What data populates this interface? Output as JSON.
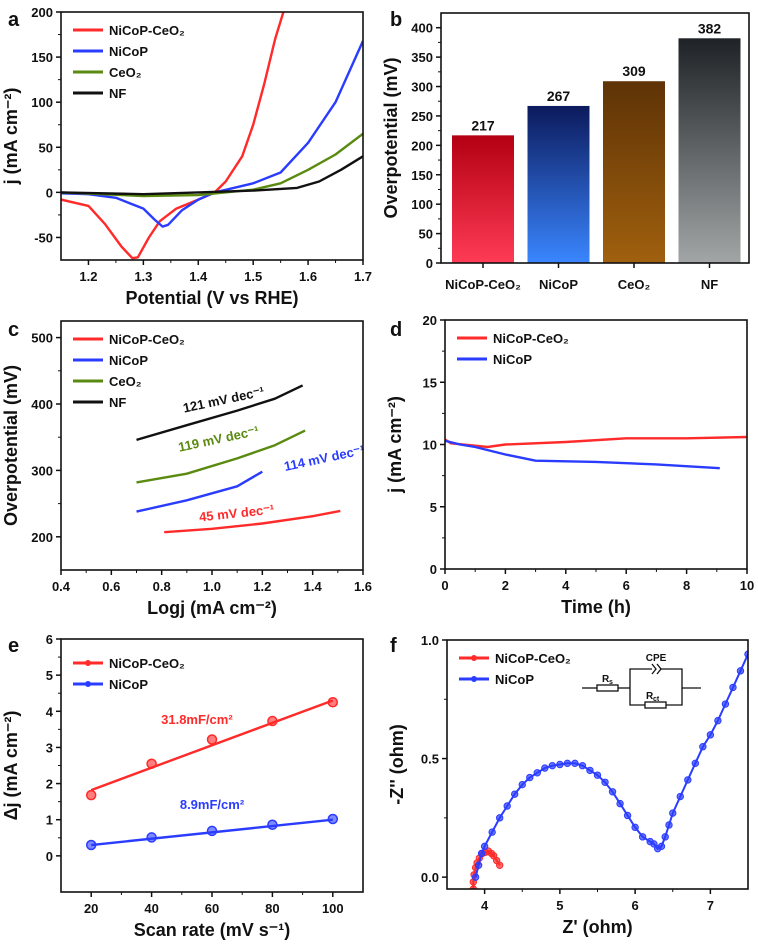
{
  "colors": {
    "red": "#ff2a2a",
    "blue": "#2a3cff",
    "green": "#5a8a10",
    "black": "#111111"
  },
  "chart_data": [
    {
      "id": "a",
      "panel_label": "a",
      "type": "line",
      "xlabel": "Potential (V vs RHE)",
      "ylabel": "j (mA cm⁻²)",
      "xlim": [
        1.15,
        1.7
      ],
      "ylim": [
        -75,
        200
      ],
      "xticks": [
        1.2,
        1.3,
        1.4,
        1.5,
        1.6,
        1.7
      ],
      "xtick_labels": [
        "1.2",
        "1.3",
        "1.4",
        "1.5",
        "1.6",
        "1.7"
      ],
      "yticks": [
        -50,
        0,
        50,
        100,
        150,
        200
      ],
      "ytick_labels": [
        "-50",
        "0",
        "50",
        "100",
        "150",
        "200"
      ],
      "legend": "top-left",
      "series": [
        {
          "name": "NiCoP-CeO₂",
          "color": "#ff2a2a",
          "x": [
            1.15,
            1.2,
            1.23,
            1.26,
            1.28,
            1.29,
            1.31,
            1.33,
            1.36,
            1.4,
            1.43,
            1.45,
            1.48,
            1.5,
            1.52,
            1.54,
            1.555
          ],
          "y": [
            -8,
            -15,
            -35,
            -60,
            -73,
            -72,
            -50,
            -32,
            -18,
            -8,
            0,
            12,
            40,
            75,
            120,
            170,
            200
          ]
        },
        {
          "name": "NiCoP",
          "color": "#2a3cff",
          "x": [
            1.15,
            1.2,
            1.25,
            1.3,
            1.32,
            1.335,
            1.345,
            1.37,
            1.4,
            1.43,
            1.5,
            1.55,
            1.6,
            1.65,
            1.7
          ],
          "y": [
            -1,
            -2,
            -6,
            -18,
            -30,
            -38,
            -36,
            -20,
            -8,
            0,
            10,
            22,
            55,
            100,
            168
          ]
        },
        {
          "name": "CeO₂",
          "color": "#5a8a10",
          "x": [
            1.15,
            1.3,
            1.4,
            1.5,
            1.55,
            1.6,
            1.65,
            1.7
          ],
          "y": [
            0,
            -4,
            -3,
            3,
            10,
            25,
            42,
            65
          ]
        },
        {
          "name": "NF",
          "color": "#111111",
          "x": [
            1.15,
            1.3,
            1.4,
            1.5,
            1.58,
            1.62,
            1.66,
            1.7
          ],
          "y": [
            0,
            -2,
            0,
            2,
            5,
            12,
            25,
            40
          ]
        }
      ]
    },
    {
      "id": "b",
      "panel_label": "b",
      "type": "bar",
      "xlabel": "",
      "ylabel": "Overpotential (mV)",
      "ylim": [
        0,
        425
      ],
      "yticks": [
        0,
        50,
        100,
        150,
        200,
        250,
        300,
        350,
        400
      ],
      "ytick_labels": [
        "0",
        "50",
        "100",
        "150",
        "200",
        "250",
        "300",
        "350",
        "400"
      ],
      "categories": [
        "NiCoP-CeO₂",
        "NiCoP",
        "CeO₂",
        "NF"
      ],
      "values": [
        217,
        267,
        309,
        382
      ],
      "value_labels": [
        "217",
        "267",
        "309",
        "382"
      ],
      "bar_colors": [
        [
          "#b30012",
          "#ff3b55"
        ],
        [
          "#0c1a5c",
          "#3a86ff"
        ],
        [
          "#5e3306",
          "#a0600e"
        ],
        [
          "#1e2226",
          "#a2a6a6"
        ]
      ]
    },
    {
      "id": "c",
      "panel_label": "c",
      "type": "line",
      "xlabel": "Logj (mA cm⁻²)",
      "ylabel": "Overpotential (mV)",
      "xlim": [
        0.4,
        1.6
      ],
      "ylim": [
        150,
        525
      ],
      "xticks": [
        0.4,
        0.6,
        0.8,
        1.0,
        1.2,
        1.4,
        1.6
      ],
      "xtick_labels": [
        "0.4",
        "0.6",
        "0.8",
        "1.0",
        "1.2",
        "1.4",
        "1.6"
      ],
      "yticks": [
        200,
        300,
        400,
        500
      ],
      "ytick_labels": [
        "200",
        "300",
        "400",
        "500"
      ],
      "legend": "top-left",
      "series": [
        {
          "name": "NiCoP-CeO₂",
          "color": "#ff2a2a",
          "x": [
            0.81,
            1.0,
            1.2,
            1.4,
            1.51
          ],
          "y": [
            207,
            212,
            220,
            231,
            239
          ],
          "annotation": "45 mV dec⁻¹",
          "ann_at": [
            1.1,
            229
          ],
          "ann_rot": -6
        },
        {
          "name": "NiCoP",
          "color": "#2a3cff",
          "x": [
            0.7,
            0.9,
            1.1,
            1.2
          ],
          "y": [
            238,
            255,
            276,
            298
          ],
          "annotation": "114 mV dec⁻¹",
          "ann_at": [
            1.45,
            312
          ],
          "ann_rot": -12
        },
        {
          "name": "CeO₂",
          "color": "#5a8a10",
          "x": [
            0.7,
            0.9,
            1.1,
            1.25,
            1.37
          ],
          "y": [
            282,
            295,
            318,
            338,
            360
          ],
          "annotation": "119 mV dec⁻¹",
          "ann_at": [
            1.03,
            341
          ],
          "ann_rot": -12
        },
        {
          "name": "NF",
          "color": "#111111",
          "x": [
            0.7,
            0.9,
            1.1,
            1.25,
            1.36
          ],
          "y": [
            346,
            368,
            390,
            408,
            428
          ],
          "annotation": "121 mV dec⁻¹",
          "ann_at": [
            1.05,
            400
          ],
          "ann_rot": -12
        }
      ]
    },
    {
      "id": "d",
      "panel_label": "d",
      "type": "line",
      "xlabel": "Time (h)",
      "ylabel": "j (mA cm⁻²)",
      "xlim": [
        0,
        10
      ],
      "ylim": [
        0,
        20
      ],
      "xticks": [
        0,
        2,
        4,
        6,
        8,
        10
      ],
      "xtick_labels": [
        "0",
        "2",
        "4",
        "6",
        "8",
        "10"
      ],
      "yticks": [
        0,
        5,
        10,
        15,
        20
      ],
      "ytick_labels": [
        "0",
        "5",
        "10",
        "15",
        "20"
      ],
      "legend": "top-left",
      "series": [
        {
          "name": "NiCoP-CeO₂",
          "color": "#ff2a2a",
          "x": [
            0,
            0.2,
            1,
            1.4,
            2,
            4,
            6,
            8,
            10
          ],
          "y": [
            10.4,
            10.1,
            9.9,
            9.8,
            10,
            10.2,
            10.5,
            10.5,
            10.6
          ]
        },
        {
          "name": "NiCoP",
          "color": "#2a3cff",
          "x": [
            0,
            0.5,
            1,
            2,
            3,
            5,
            7,
            9.1
          ],
          "y": [
            10.3,
            10,
            9.8,
            9.2,
            8.7,
            8.6,
            8.4,
            8.1
          ]
        }
      ]
    },
    {
      "id": "e",
      "panel_label": "e",
      "type": "scatter",
      "xlabel": "Scan rate (mV s⁻¹)",
      "ylabel": "Δj (mA cm⁻²)",
      "xlim": [
        10,
        110
      ],
      "ylim": [
        -1,
        6
      ],
      "xticks": [
        20,
        40,
        60,
        80,
        100
      ],
      "xtick_labels": [
        "20",
        "40",
        "60",
        "80",
        "100"
      ],
      "yticks": [
        0,
        1,
        2,
        3,
        4,
        5,
        6
      ],
      "ytick_labels": [
        "0",
        "1",
        "2",
        "3",
        "4",
        "5",
        "6"
      ],
      "legend": "top-left",
      "series": [
        {
          "name": "NiCoP-CeO₂",
          "color": "#ff2a2a",
          "x": [
            20,
            40,
            60,
            80,
            100
          ],
          "y": [
            1.68,
            2.55,
            3.22,
            3.73,
            4.25
          ],
          "fit": [
            1.82,
            4.3
          ],
          "annotation": "31.8mF/cm²",
          "ann_at": [
            55,
            3.65
          ]
        },
        {
          "name": "NiCoP",
          "color": "#2a3cff",
          "x": [
            20,
            40,
            60,
            80,
            100
          ],
          "y": [
            0.3,
            0.51,
            0.69,
            0.86,
            1.02
          ],
          "fit": [
            0.3,
            1.0
          ],
          "annotation": "8.9mF/cm²",
          "ann_at": [
            60,
            1.3
          ]
        }
      ]
    },
    {
      "id": "f",
      "panel_label": "f",
      "type": "scatter",
      "xlabel": "Z' (ohm)",
      "ylabel": "-Z'' (ohm)",
      "xlim": [
        3.5,
        7.5
      ],
      "ylim": [
        -0.05,
        1.0
      ],
      "xticks": [
        4,
        5,
        6,
        7
      ],
      "xtick_labels": [
        "4",
        "5",
        "6",
        "7"
      ],
      "yticks": [
        0,
        0.5,
        1.0
      ],
      "ytick_labels": [
        "0.0",
        "0.5",
        "1.0"
      ],
      "legend": "top-left",
      "series": [
        {
          "name": "NiCoP-CeO₂",
          "color": "#ff2a2a",
          "x": [
            3.85,
            3.85,
            3.86,
            3.88,
            3.9,
            3.93,
            3.97,
            4.01,
            4.05,
            4.09,
            4.12,
            4.16,
            4.2
          ],
          "y": [
            -0.05,
            -0.02,
            0.01,
            0.04,
            0.06,
            0.08,
            0.1,
            0.105,
            0.11,
            0.1,
            0.09,
            0.07,
            0.05
          ]
        },
        {
          "name": "NiCoP",
          "color": "#2a3cff",
          "x": [
            3.88,
            3.92,
            3.96,
            4.0,
            4.1,
            4.2,
            4.3,
            4.4,
            4.5,
            4.6,
            4.7,
            4.8,
            4.9,
            5.0,
            5.1,
            5.2,
            5.3,
            5.4,
            5.5,
            5.6,
            5.7,
            5.8,
            5.9,
            6.0,
            6.1,
            6.2,
            6.25,
            6.3,
            6.35,
            6.4,
            6.45,
            6.5,
            6.6,
            6.7,
            6.8,
            6.9,
            7.0,
            7.1,
            7.2,
            7.3,
            7.4,
            7.5
          ],
          "y": [
            0.0,
            0.05,
            0.1,
            0.13,
            0.19,
            0.25,
            0.3,
            0.35,
            0.39,
            0.42,
            0.44,
            0.46,
            0.47,
            0.475,
            0.48,
            0.48,
            0.47,
            0.45,
            0.43,
            0.4,
            0.36,
            0.31,
            0.26,
            0.21,
            0.17,
            0.15,
            0.14,
            0.12,
            0.13,
            0.17,
            0.22,
            0.27,
            0.34,
            0.41,
            0.48,
            0.55,
            0.6,
            0.66,
            0.73,
            0.8,
            0.87,
            0.94
          ]
        }
      ],
      "inset_circuit": {
        "cpe_label": "CPE",
        "rs_label": "R",
        "rs_sub": "s",
        "rct_label": "R",
        "rct_sub": "ct"
      }
    }
  ]
}
